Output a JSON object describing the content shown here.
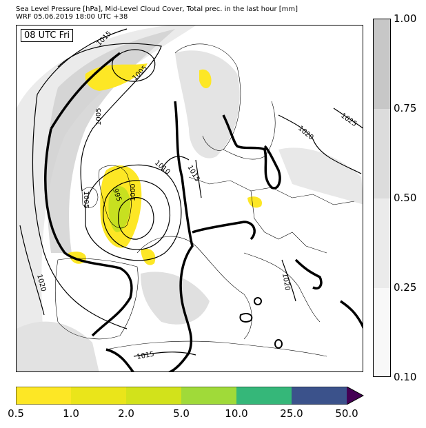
{
  "header": {
    "line1": "Sea Level Pressure [hPa], Mid-Level Cloud Cover, Total prec. in the last hour [mm]",
    "line2": "WRF 05.06.2019 18:00 UTC +38"
  },
  "map": {
    "time_label": "08 UTC Fri",
    "isobar_labels": [
      "1015",
      "1005",
      "1005",
      "1010",
      "1015",
      "1020",
      "1025",
      "995",
      "1000",
      "1005",
      "1020",
      "1020",
      "1015"
    ]
  },
  "cloud_colorbar": {
    "ticks": [
      "1.00",
      "0.75",
      "0.50",
      "0.25",
      "0.10"
    ],
    "colors": [
      "#c7c7c7",
      "#dcdcdc",
      "#ebebeb",
      "#f8f8f8"
    ]
  },
  "precip_colorbar": {
    "ticks": [
      "0.5",
      "1.0",
      "2.0",
      "5.0",
      "10.0",
      "25.0",
      "50.0"
    ],
    "colors": [
      "#fde725",
      "#eae51a",
      "#d2e21b",
      "#a0da39",
      "#35b779",
      "#3b528b",
      "#440154"
    ]
  }
}
